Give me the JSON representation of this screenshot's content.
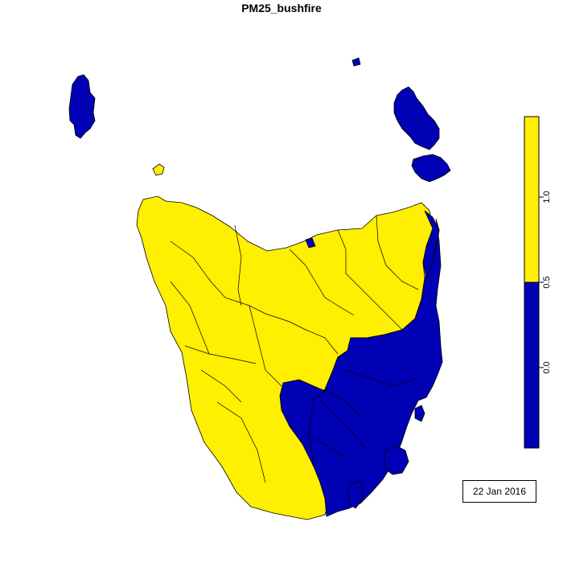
{
  "title": "PM25_bushfire",
  "date_label": "22 Jan 2016",
  "colors": {
    "low": "#0000b4",
    "high": "#ffef00",
    "border": "#000000"
  },
  "legend": {
    "breaks": [
      -0.5,
      0.5,
      1.5
    ],
    "tick_labels": [
      "0.0",
      "0.5",
      "1.0"
    ],
    "tick_values": [
      0.0,
      0.5,
      1.0
    ],
    "classes": [
      {
        "range": [
          -0.5,
          0.5
        ],
        "color": "low"
      },
      {
        "range": [
          0.5,
          1.5
        ],
        "color": "high"
      }
    ]
  },
  "regions": [
    {
      "name": "king-island",
      "class": "low"
    },
    {
      "name": "flinders-island",
      "class": "low"
    },
    {
      "name": "cape-barren-island",
      "class": "low"
    },
    {
      "name": "western-tasmania",
      "class": "high"
    },
    {
      "name": "southeastern-tasmania",
      "class": "low"
    },
    {
      "name": "east-coast-strip",
      "class": "low"
    },
    {
      "name": "bruny-island",
      "class": "low"
    },
    {
      "name": "tasman-peninsula",
      "class": "low"
    },
    {
      "name": "maria-island",
      "class": "low"
    },
    {
      "name": "robbins-island",
      "class": "high"
    }
  ]
}
